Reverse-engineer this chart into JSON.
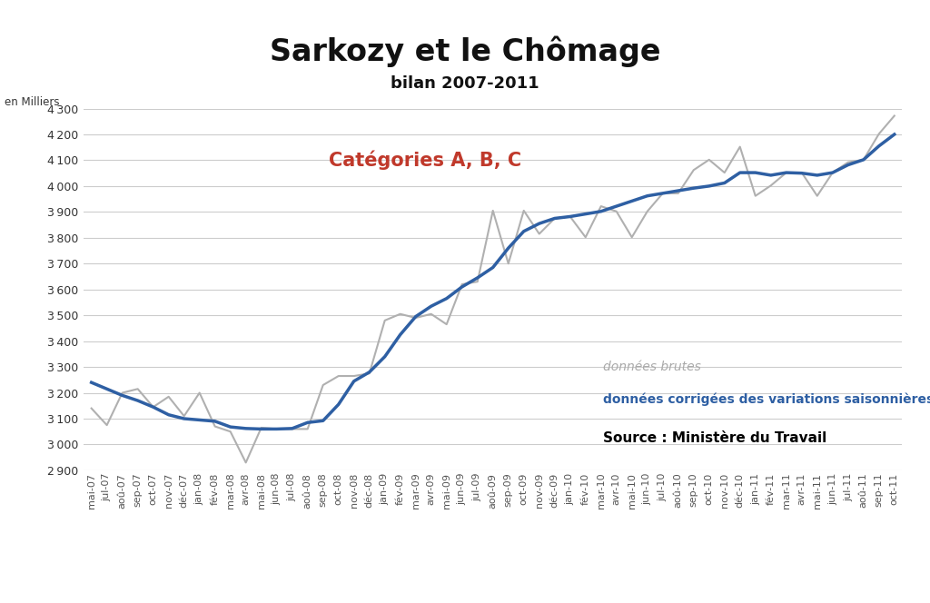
{
  "title": "Sarkozy et le Chômage",
  "subtitle": "bilan 2007-2011",
  "ylabel": "en Milliers",
  "annotation": "Catégories A, B, C",
  "legend_raw": "données brutes",
  "legend_cvs": "données corrigées des variations saisonnières",
  "source": "Source : Ministère du Travail",
  "ylim": [
    2900,
    4300
  ],
  "yticks": [
    2900,
    3000,
    3100,
    3200,
    3300,
    3400,
    3500,
    3600,
    3700,
    3800,
    3900,
    4000,
    4100,
    4200,
    4300
  ],
  "x_labels": [
    "mai-07",
    "jul-07",
    "aoû-07",
    "sep-07",
    "oct-07",
    "nov-07",
    "déc-07",
    "jan-08",
    "fév-08",
    "mar-08",
    "avr-08",
    "mai-08",
    "jun-08",
    "jul-08",
    "aoû-08",
    "sep-08",
    "oct-08",
    "nov-08",
    "déc-08",
    "jan-09",
    "fév-09",
    "mar-09",
    "avr-09",
    "mai-09",
    "jun-09",
    "jul-09",
    "aoû-09",
    "sep-09",
    "oct-09",
    "nov-09",
    "déc-09",
    "jan-10",
    "fév-10",
    "mar-10",
    "avr-10",
    "mai-10",
    "jun-10",
    "jul-10",
    "aoû-10",
    "sep-10",
    "oct-10",
    "nov-10",
    "déc-10",
    "jan-11",
    "fév-11",
    "mar-11",
    "avr-11",
    "mai-11",
    "jun-11",
    "jul-11",
    "aoû-11",
    "sep-11",
    "oct-11"
  ],
  "cvs": [
    3240,
    3215,
    3190,
    3170,
    3145,
    3115,
    3100,
    3095,
    3090,
    3068,
    3062,
    3060,
    3060,
    3062,
    3085,
    3092,
    3155,
    3245,
    3280,
    3340,
    3425,
    3495,
    3535,
    3565,
    3610,
    3645,
    3685,
    3760,
    3825,
    3855,
    3875,
    3882,
    3892,
    3902,
    3922,
    3942,
    3962,
    3972,
    3982,
    3992,
    4000,
    4012,
    4052,
    4052,
    4042,
    4052,
    4050,
    4042,
    4052,
    4082,
    4102,
    4155,
    4200
  ],
  "raw": [
    3140,
    3075,
    3200,
    3215,
    3145,
    3185,
    3110,
    3200,
    3070,
    3050,
    2930,
    3065,
    3060,
    3060,
    3060,
    3230,
    3265,
    3265,
    3275,
    3480,
    3505,
    3490,
    3505,
    3465,
    3620,
    3630,
    3905,
    3700,
    3905,
    3815,
    3875,
    3882,
    3802,
    3922,
    3902,
    3802,
    3902,
    3972,
    3972,
    4062,
    4102,
    4052,
    4152,
    3962,
    4002,
    4052,
    4052,
    3962,
    4052,
    4092,
    4102,
    4202,
    4272
  ],
  "title_color": "#111111",
  "subtitle_color": "#111111",
  "annotation_color": "#c0392b",
  "cvs_color": "#2e5fa3",
  "raw_color": "#b0b0b0",
  "legend_raw_color": "#aaaaaa",
  "background_color": "#ffffff",
  "grid_color": "#cccccc",
  "title_fontsize": 24,
  "subtitle_fontsize": 13,
  "annotation_fontsize": 15,
  "legend_fontsize": 10,
  "source_fontsize": 11,
  "tick_fontsize": 8,
  "ytick_fontsize": 9
}
